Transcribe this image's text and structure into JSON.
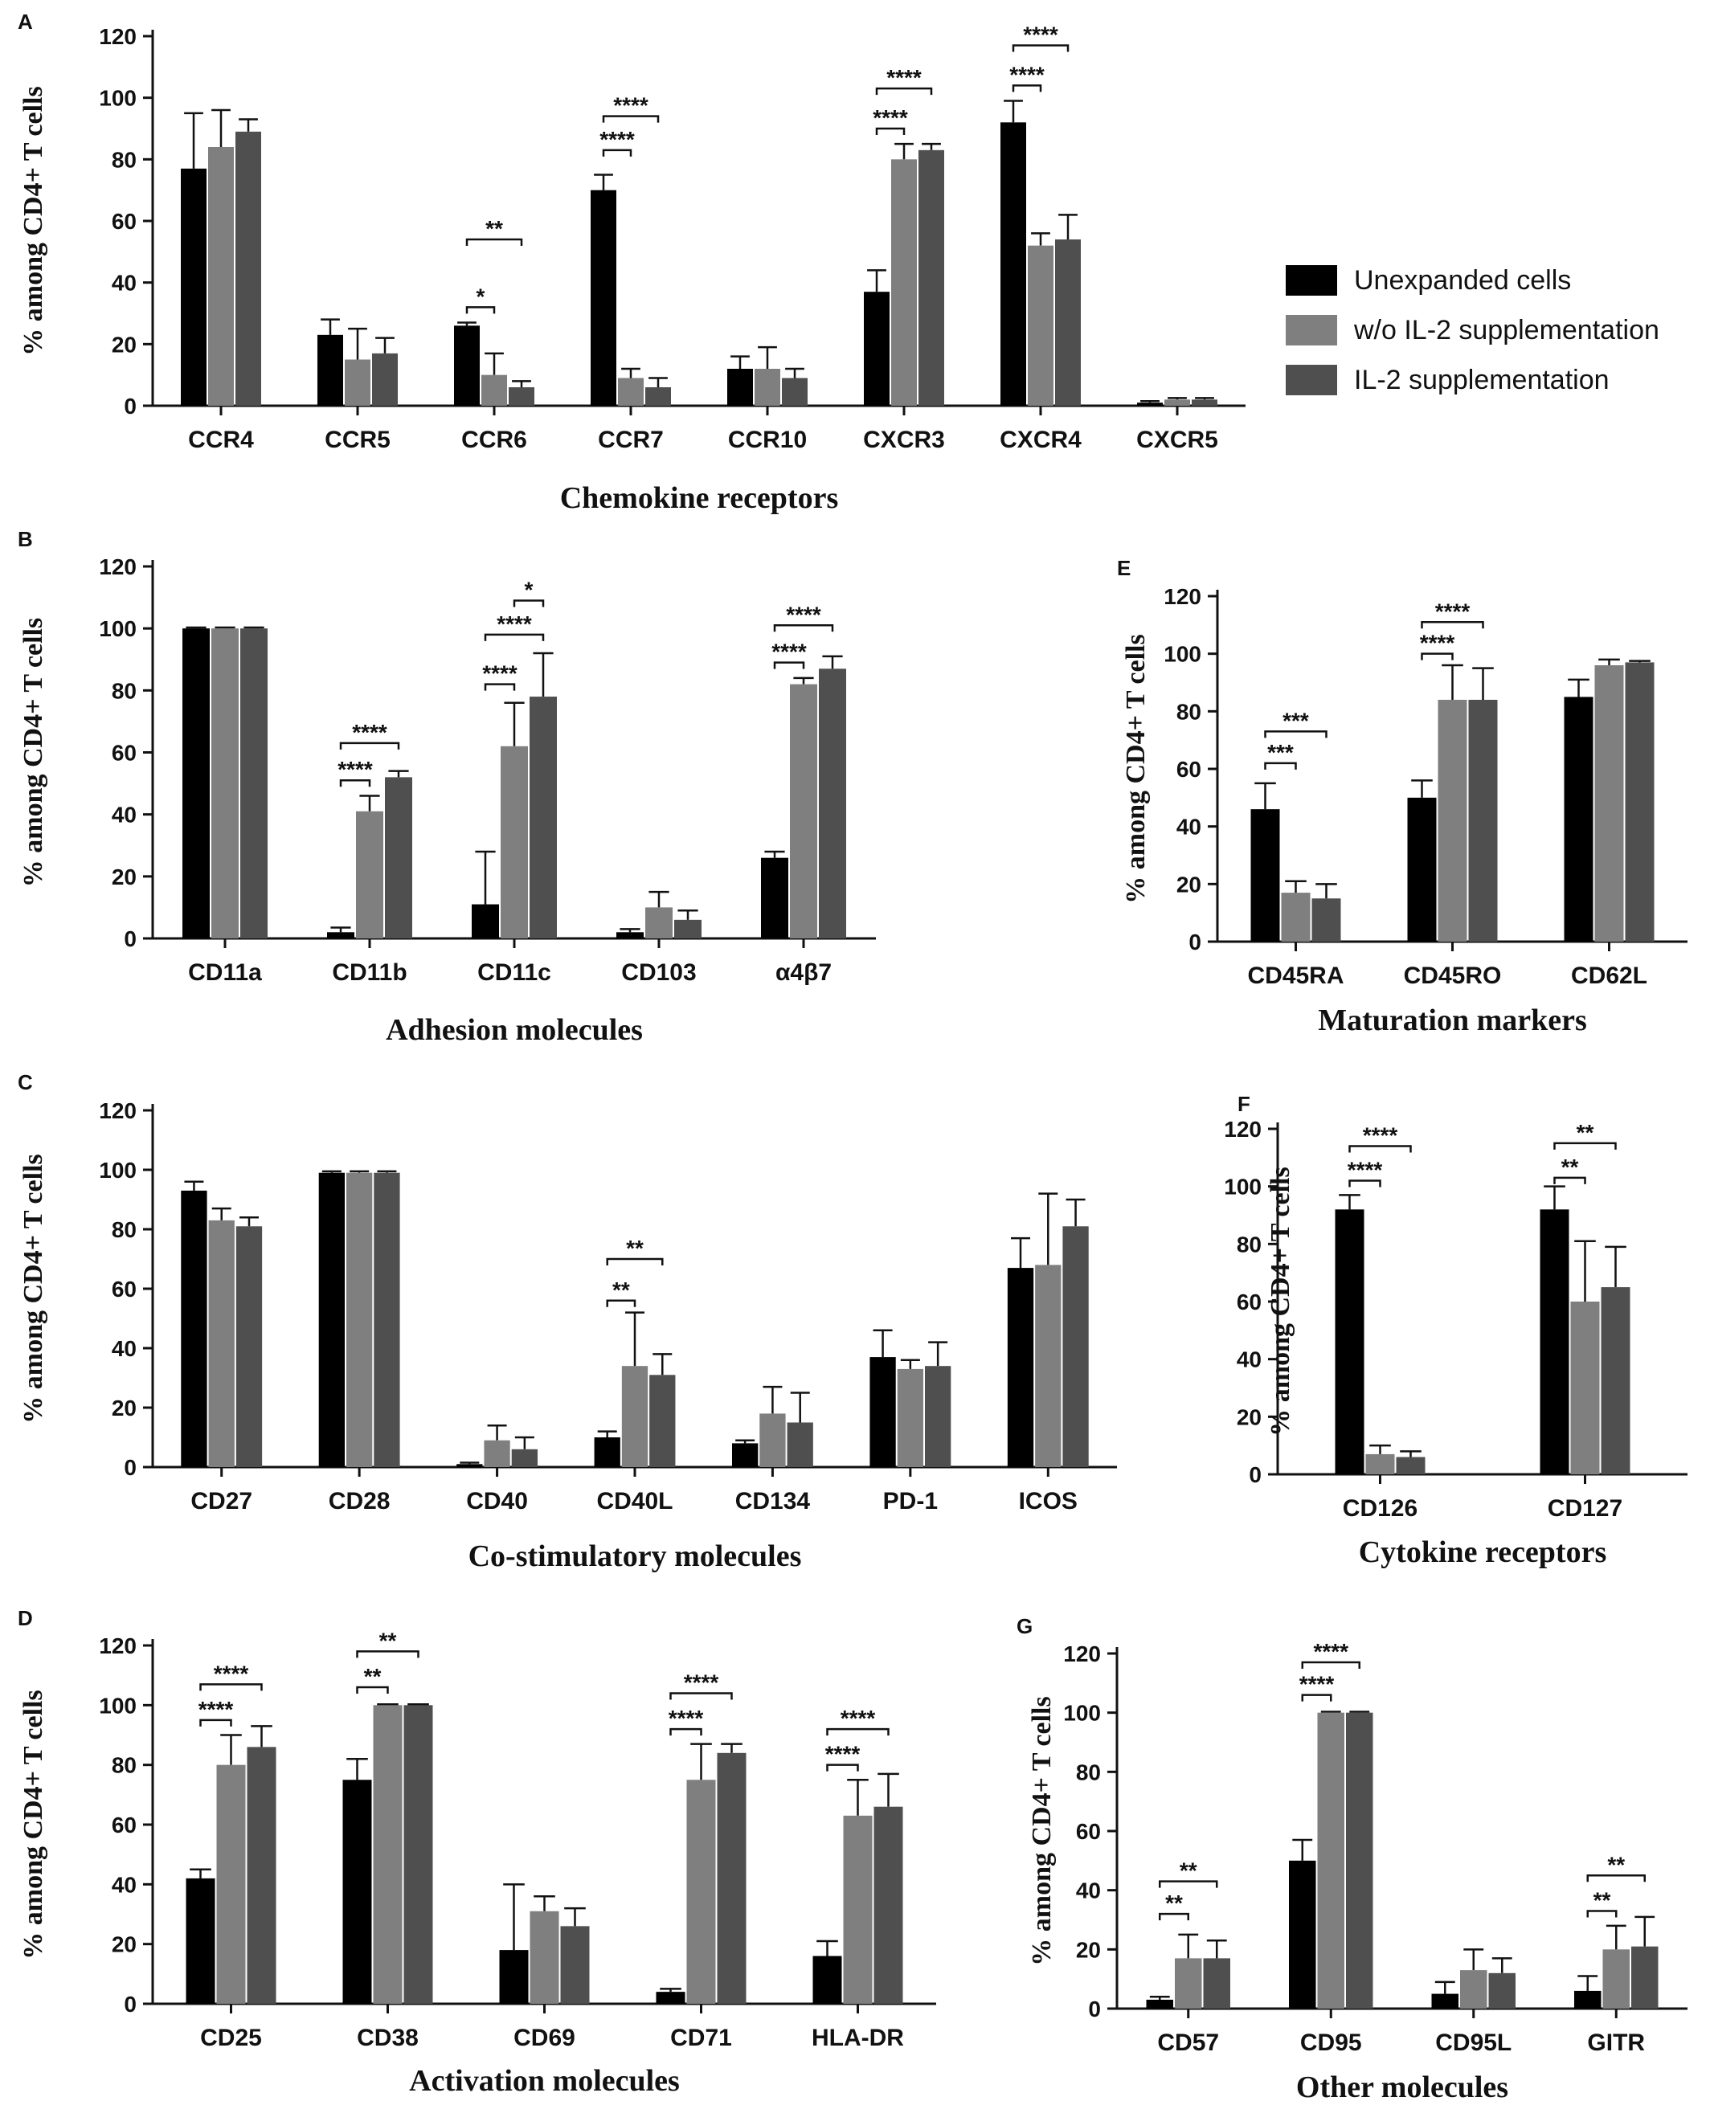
{
  "legend": {
    "entries": [
      {
        "label": "Unexpanded cells",
        "color": "#000000"
      },
      {
        "label": "w/o IL-2 supplementation",
        "color": "#7f7f7f"
      },
      {
        "label": "IL-2 supplementation",
        "color": "#4f4f4f"
      }
    ]
  },
  "series_colors": [
    "#000000",
    "#7f7f7f",
    "#4f4f4f"
  ],
  "chart_data": [
    {
      "panel": "A",
      "type": "bar",
      "title": "",
      "xlabel": "Chemokine receptors",
      "ylabel": "% among CD4+ T cells",
      "ylim": [
        0,
        120
      ],
      "yticks": [
        0,
        20,
        40,
        60,
        80,
        100,
        120
      ],
      "categories": [
        "CCR4",
        "CCR5",
        "CCR6",
        "CCR7",
        "CCR10",
        "CXCR3",
        "CXCR4",
        "CXCR5"
      ],
      "series": [
        {
          "name": "Unexpanded cells",
          "values": [
            77,
            23,
            26,
            70,
            12,
            37,
            92,
            1
          ],
          "errors": [
            18,
            5,
            1,
            5,
            4,
            7,
            7,
            0.5
          ]
        },
        {
          "name": "w/o IL-2 supplementation",
          "values": [
            84,
            15,
            10,
            9,
            12,
            80,
            52,
            2
          ],
          "errors": [
            12,
            10,
            7,
            3,
            7,
            5,
            4,
            0.5
          ]
        },
        {
          "name": "IL-2 supplementation",
          "values": [
            89,
            17,
            6,
            6,
            9,
            83,
            54,
            2
          ],
          "errors": [
            4,
            5,
            2,
            3,
            3,
            2,
            8,
            0.5
          ]
        }
      ],
      "significance": [
        {
          "category": 2,
          "from": 0,
          "to": 1,
          "label": "*",
          "level": 32
        },
        {
          "category": 2,
          "from": 0,
          "to": 2,
          "label": "**",
          "level": 54
        },
        {
          "category": 3,
          "from": 0,
          "to": 1,
          "label": "****",
          "level": 83
        },
        {
          "category": 3,
          "from": 0,
          "to": 2,
          "label": "****",
          "level": 94
        },
        {
          "category": 5,
          "from": 0,
          "to": 1,
          "label": "****",
          "level": 90
        },
        {
          "category": 5,
          "from": 0,
          "to": 2,
          "label": "****",
          "level": 103
        },
        {
          "category": 6,
          "from": 0,
          "to": 1,
          "label": "****",
          "level": 104
        },
        {
          "category": 6,
          "from": 0,
          "to": 2,
          "label": "****",
          "level": 117
        }
      ]
    },
    {
      "panel": "B",
      "type": "bar",
      "title": "",
      "xlabel": "Adhesion molecules",
      "ylabel": "% among CD4+ T cells",
      "ylim": [
        0,
        120
      ],
      "yticks": [
        0,
        20,
        40,
        60,
        80,
        100,
        120
      ],
      "categories": [
        "CD11a",
        "CD11b",
        "CD11c",
        "CD103",
        "α4β7"
      ],
      "series": [
        {
          "name": "Unexpanded cells",
          "values": [
            100,
            2,
            11,
            2,
            26
          ],
          "errors": [
            0.3,
            1.5,
            17,
            1,
            2
          ]
        },
        {
          "name": "w/o IL-2 supplementation",
          "values": [
            100,
            41,
            62,
            10,
            82
          ],
          "errors": [
            0.3,
            5,
            14,
            5,
            2
          ]
        },
        {
          "name": "IL-2 supplementation",
          "values": [
            100,
            52,
            78,
            6,
            87
          ],
          "errors": [
            0.3,
            2,
            14,
            3,
            4
          ]
        }
      ],
      "significance": [
        {
          "category": 1,
          "from": 0,
          "to": 1,
          "label": "****",
          "level": 51
        },
        {
          "category": 1,
          "from": 0,
          "to": 2,
          "label": "****",
          "level": 63
        },
        {
          "category": 2,
          "from": 0,
          "to": 1,
          "label": "****",
          "level": 82
        },
        {
          "category": 2,
          "from": 0,
          "to": 2,
          "label": "****",
          "level": 98
        },
        {
          "category": 2,
          "from": 1,
          "to": 2,
          "label": "*",
          "level": 109
        },
        {
          "category": 4,
          "from": 0,
          "to": 1,
          "label": "****",
          "level": 89
        },
        {
          "category": 4,
          "from": 0,
          "to": 2,
          "label": "****",
          "level": 101
        }
      ]
    },
    {
      "panel": "C",
      "type": "bar",
      "title": "",
      "xlabel": "Co-stimulatory molecules",
      "ylabel": "% among CD4+ T cells",
      "ylim": [
        0,
        120
      ],
      "yticks": [
        0,
        20,
        40,
        60,
        80,
        100,
        120
      ],
      "categories": [
        "CD27",
        "CD28",
        "CD40",
        "CD40L",
        "CD134",
        "PD-1",
        "ICOS"
      ],
      "series": [
        {
          "name": "Unexpanded cells",
          "values": [
            93,
            99,
            1,
            10,
            8,
            37,
            67
          ],
          "errors": [
            3,
            0.5,
            0.5,
            2,
            1,
            9,
            10
          ]
        },
        {
          "name": "w/o IL-2 supplementation",
          "values": [
            83,
            99,
            9,
            34,
            18,
            33,
            68
          ],
          "errors": [
            4,
            0.5,
            5,
            18,
            9,
            3,
            24
          ]
        },
        {
          "name": "IL-2 supplementation",
          "values": [
            81,
            99,
            6,
            31,
            15,
            34,
            81
          ],
          "errors": [
            3,
            0.5,
            4,
            7,
            10,
            8,
            9
          ]
        }
      ],
      "significance": [
        {
          "category": 3,
          "from": 0,
          "to": 1,
          "label": "**",
          "level": 56
        },
        {
          "category": 3,
          "from": 0,
          "to": 2,
          "label": "**",
          "level": 70
        }
      ]
    },
    {
      "panel": "D",
      "type": "bar",
      "title": "",
      "xlabel": "Activation molecules",
      "ylabel": "% among CD4+ T cells",
      "ylim": [
        0,
        120
      ],
      "yticks": [
        0,
        20,
        40,
        60,
        80,
        100,
        120
      ],
      "categories": [
        "CD25",
        "CD38",
        "CD69",
        "CD71",
        "HLA-DR"
      ],
      "series": [
        {
          "name": "Unexpanded cells",
          "values": [
            42,
            75,
            18,
            4,
            16
          ],
          "errors": [
            3,
            7,
            22,
            1,
            5
          ]
        },
        {
          "name": "w/o IL-2 supplementation",
          "values": [
            80,
            100,
            31,
            75,
            63
          ],
          "errors": [
            10,
            0.3,
            5,
            12,
            12
          ]
        },
        {
          "name": "IL-2 supplementation",
          "values": [
            86,
            100,
            26,
            84,
            66
          ],
          "errors": [
            7,
            0.3,
            6,
            3,
            11
          ]
        }
      ],
      "significance": [
        {
          "category": 0,
          "from": 0,
          "to": 1,
          "label": "****",
          "level": 95
        },
        {
          "category": 0,
          "from": 0,
          "to": 2,
          "label": "****",
          "level": 107
        },
        {
          "category": 1,
          "from": 0,
          "to": 1,
          "label": "**",
          "level": 106
        },
        {
          "category": 1,
          "from": 0,
          "to": 2,
          "label": "**",
          "level": 118
        },
        {
          "category": 3,
          "from": 0,
          "to": 1,
          "label": "****",
          "level": 92
        },
        {
          "category": 3,
          "from": 0,
          "to": 2,
          "label": "****",
          "level": 104
        },
        {
          "category": 4,
          "from": 0,
          "to": 1,
          "label": "****",
          "level": 80
        },
        {
          "category": 4,
          "from": 0,
          "to": 2,
          "label": "****",
          "level": 92
        }
      ]
    },
    {
      "panel": "E",
      "type": "bar",
      "title": "",
      "xlabel": "Maturation markers",
      "ylabel": "% among CD4+ T cells",
      "ylim": [
        0,
        120
      ],
      "yticks": [
        0,
        20,
        40,
        60,
        80,
        100,
        120
      ],
      "categories": [
        "CD45RA",
        "CD45RO",
        "CD62L"
      ],
      "series": [
        {
          "name": "Unexpanded cells",
          "values": [
            46,
            50,
            85
          ],
          "errors": [
            9,
            6,
            6
          ]
        },
        {
          "name": "w/o IL-2 supplementation",
          "values": [
            17,
            84,
            96
          ],
          "errors": [
            4,
            12,
            2
          ]
        },
        {
          "name": "IL-2 supplementation",
          "values": [
            15,
            84,
            97
          ],
          "errors": [
            5,
            11,
            0.5
          ]
        }
      ],
      "significance": [
        {
          "category": 0,
          "from": 0,
          "to": 1,
          "label": "***",
          "level": 62
        },
        {
          "category": 0,
          "from": 0,
          "to": 2,
          "label": "***",
          "level": 73
        },
        {
          "category": 1,
          "from": 0,
          "to": 1,
          "label": "****",
          "level": 100
        },
        {
          "category": 1,
          "from": 0,
          "to": 2,
          "label": "****",
          "level": 111
        }
      ]
    },
    {
      "panel": "F",
      "type": "bar",
      "title": "",
      "xlabel": "Cytokine receptors",
      "ylabel": "% among CD4+ T cells",
      "ylim": [
        0,
        120
      ],
      "yticks": [
        0,
        20,
        40,
        60,
        80,
        100,
        120
      ],
      "categories": [
        "CD126",
        "CD127"
      ],
      "series": [
        {
          "name": "Unexpanded cells",
          "values": [
            92,
            92
          ],
          "errors": [
            5,
            8
          ]
        },
        {
          "name": "w/o IL-2 supplementation",
          "values": [
            7,
            60
          ],
          "errors": [
            3,
            21
          ]
        },
        {
          "name": "IL-2 supplementation",
          "values": [
            6,
            65
          ],
          "errors": [
            2,
            14
          ]
        }
      ],
      "significance": [
        {
          "category": 0,
          "from": 0,
          "to": 1,
          "label": "****",
          "level": 102
        },
        {
          "category": 0,
          "from": 0,
          "to": 2,
          "label": "****",
          "level": 114
        },
        {
          "category": 1,
          "from": 0,
          "to": 1,
          "label": "**",
          "level": 103
        },
        {
          "category": 1,
          "from": 0,
          "to": 2,
          "label": "**",
          "level": 115
        }
      ]
    },
    {
      "panel": "G",
      "type": "bar",
      "title": "",
      "xlabel": "Other molecules",
      "ylabel": "% among CD4+ T cells",
      "ylim": [
        0,
        120
      ],
      "yticks": [
        0,
        20,
        40,
        60,
        80,
        100,
        120
      ],
      "categories": [
        "CD57",
        "CD95",
        "CD95L",
        "GITR"
      ],
      "series": [
        {
          "name": "Unexpanded cells",
          "values": [
            3,
            50,
            5,
            6
          ],
          "errors": [
            1,
            7,
            4,
            5
          ]
        },
        {
          "name": "w/o IL-2 supplementation",
          "values": [
            17,
            100,
            13,
            20
          ],
          "errors": [
            8,
            0.3,
            7,
            8
          ]
        },
        {
          "name": "IL-2 supplementation",
          "values": [
            17,
            100,
            12,
            21
          ],
          "errors": [
            6,
            0.3,
            5,
            10
          ]
        }
      ],
      "significance": [
        {
          "category": 0,
          "from": 0,
          "to": 1,
          "label": "**",
          "level": 32
        },
        {
          "category": 0,
          "from": 0,
          "to": 2,
          "label": "**",
          "level": 43
        },
        {
          "category": 1,
          "from": 0,
          "to": 1,
          "label": "****",
          "level": 106
        },
        {
          "category": 1,
          "from": 0,
          "to": 2,
          "label": "****",
          "level": 117
        },
        {
          "category": 3,
          "from": 0,
          "to": 1,
          "label": "**",
          "level": 33
        },
        {
          "category": 3,
          "from": 0,
          "to": 2,
          "label": "**",
          "level": 45
        }
      ]
    }
  ]
}
